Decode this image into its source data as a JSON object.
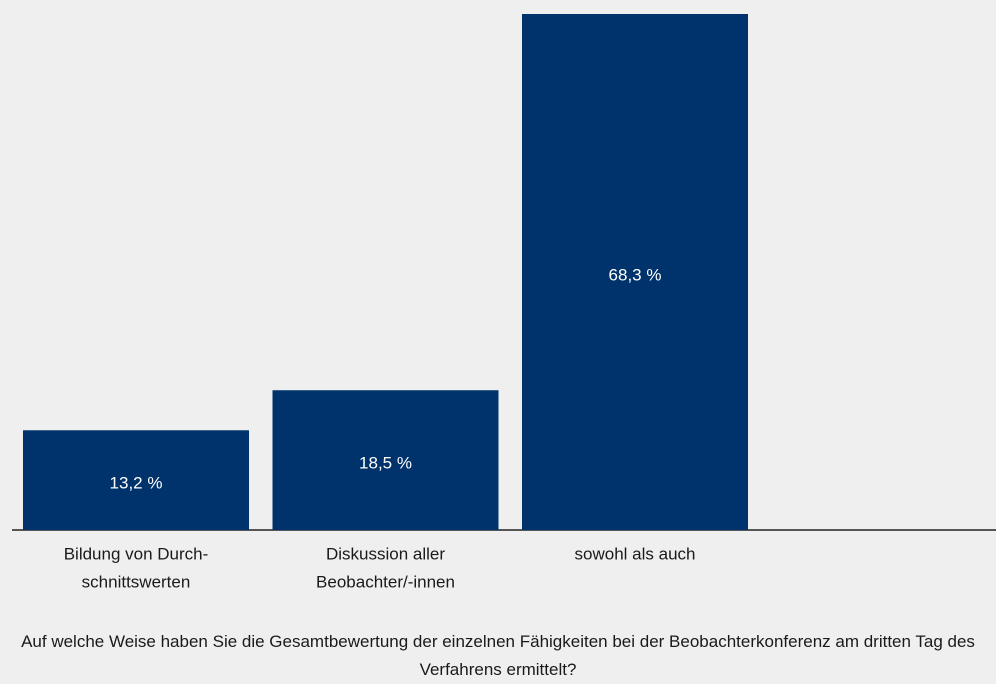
{
  "chart_data": {
    "type": "bar",
    "categories": [
      [
        "Bildung von Durch-",
        "schnittswerten"
      ],
      [
        "Diskussion aller",
        "Beobachter/-innen"
      ],
      [
        "sowohl als auch"
      ]
    ],
    "values": [
      13.2,
      18.5,
      68.3
    ],
    "value_labels": [
      "13,2 %",
      "18,5 %",
      "68,3 %"
    ],
    "color": "#00336b",
    "caption": "Auf welche Weise haben Sie die Gesamtbewertung der einzelnen Fähigkeiten bei der Beobachterkonferenz am dritten Tag des Verfahrens ermittelt?"
  }
}
